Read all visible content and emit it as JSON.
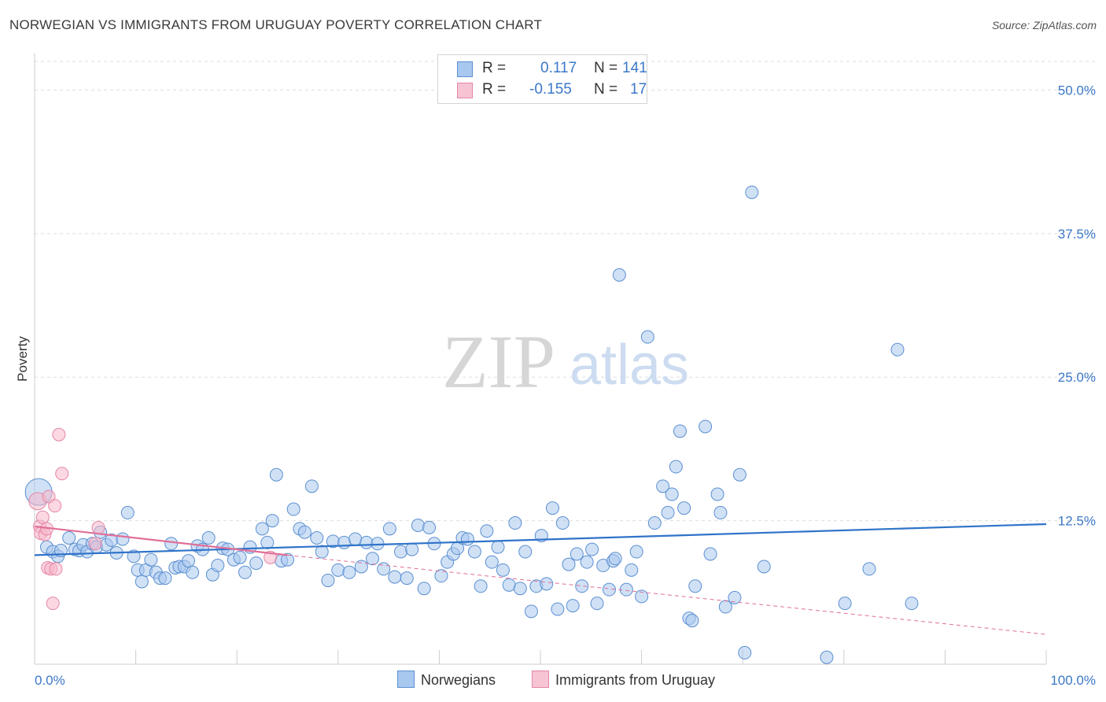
{
  "title": "NORWEGIAN VS IMMIGRANTS FROM URUGUAY POVERTY CORRELATION CHART",
  "source": "Source: ZipAtlas.com",
  "watermark": {
    "zip": "ZIP",
    "atlas": "atlas"
  },
  "legend": {
    "series1": {
      "r_label": "R =",
      "r_value": "0.117",
      "n_label": "N =",
      "n_value": "141"
    },
    "series2": {
      "r_label": "R =",
      "r_value": "-0.155",
      "n_label": "N =",
      "n_value": "17"
    }
  },
  "colors": {
    "blue_fill": "#a9c8ef",
    "blue_stroke": "#5b8fd0",
    "blue_line": "#2f73c9",
    "pink_fill": "#f7b8cb",
    "pink_stroke": "#e486a6",
    "pink_line": "#e06f98",
    "tick_label": "#3b78c8",
    "grid": "#dedede"
  },
  "chart_data": {
    "type": "scatter",
    "title": "NORWEGIAN VS IMMIGRANTS FROM URUGUAY POVERTY CORRELATION CHART",
    "xlabel": "",
    "ylabel": "Poverty",
    "xlim": [
      0,
      100
    ],
    "ylim": [
      0,
      52.5
    ],
    "x_tick_labels": [
      "0.0%",
      "100.0%"
    ],
    "y_ticks": [
      12.5,
      25.0,
      37.5,
      50.0
    ],
    "y_tick_labels": [
      "12.5%",
      "25.0%",
      "37.5%",
      "50.0%"
    ],
    "series": [
      {
        "name": "Norwegians",
        "R": 0.117,
        "N": 141,
        "trend": {
          "x": [
            0,
            100
          ],
          "y": [
            9.5,
            12.2
          ]
        },
        "points": [
          [
            0.4,
            15.0
          ],
          [
            1.2,
            10.2
          ],
          [
            1.8,
            9.8
          ],
          [
            2.3,
            9.4
          ],
          [
            2.6,
            9.9
          ],
          [
            3.4,
            11.0
          ],
          [
            4.0,
            10.0
          ],
          [
            4.4,
            9.9
          ],
          [
            4.8,
            10.4
          ],
          [
            5.2,
            9.8
          ],
          [
            5.7,
            10.5
          ],
          [
            6.1,
            10.2
          ],
          [
            6.5,
            11.5
          ],
          [
            7.1,
            10.4
          ],
          [
            7.6,
            10.8
          ],
          [
            8.1,
            9.7
          ],
          [
            8.7,
            10.9
          ],
          [
            9.2,
            13.2
          ],
          [
            9.8,
            9.4
          ],
          [
            10.2,
            8.2
          ],
          [
            10.6,
            7.2
          ],
          [
            11.0,
            8.2
          ],
          [
            11.5,
            9.1
          ],
          [
            12.0,
            8.0
          ],
          [
            12.4,
            7.5
          ],
          [
            12.9,
            7.5
          ],
          [
            13.5,
            10.5
          ],
          [
            13.9,
            8.4
          ],
          [
            14.3,
            8.5
          ],
          [
            14.8,
            8.5
          ],
          [
            15.2,
            9.0
          ],
          [
            15.6,
            8.0
          ],
          [
            16.1,
            10.3
          ],
          [
            16.6,
            10.0
          ],
          [
            17.2,
            11.0
          ],
          [
            17.6,
            7.8
          ],
          [
            18.1,
            8.6
          ],
          [
            18.6,
            10.1
          ],
          [
            19.1,
            10.0
          ],
          [
            19.7,
            9.1
          ],
          [
            20.3,
            9.3
          ],
          [
            20.8,
            8.0
          ],
          [
            21.3,
            10.2
          ],
          [
            21.9,
            8.8
          ],
          [
            22.5,
            11.8
          ],
          [
            23.0,
            10.6
          ],
          [
            23.5,
            12.5
          ],
          [
            23.9,
            16.5
          ],
          [
            24.4,
            9.0
          ],
          [
            25.0,
            9.1
          ],
          [
            25.6,
            13.5
          ],
          [
            26.2,
            11.8
          ],
          [
            26.7,
            11.5
          ],
          [
            27.4,
            15.5
          ],
          [
            27.9,
            11.0
          ],
          [
            28.4,
            9.8
          ],
          [
            29.0,
            7.3
          ],
          [
            29.5,
            10.7
          ],
          [
            30.0,
            8.2
          ],
          [
            30.6,
            10.6
          ],
          [
            31.1,
            8.0
          ],
          [
            31.7,
            10.9
          ],
          [
            32.3,
            8.5
          ],
          [
            32.8,
            10.6
          ],
          [
            33.4,
            9.2
          ],
          [
            33.9,
            10.5
          ],
          [
            34.5,
            8.3
          ],
          [
            35.1,
            11.8
          ],
          [
            35.6,
            7.6
          ],
          [
            36.2,
            9.8
          ],
          [
            36.8,
            7.5
          ],
          [
            37.3,
            10.0
          ],
          [
            37.9,
            12.1
          ],
          [
            38.5,
            6.6
          ],
          [
            39.0,
            11.9
          ],
          [
            39.5,
            10.5
          ],
          [
            40.2,
            7.7
          ],
          [
            40.8,
            8.9
          ],
          [
            41.4,
            9.6
          ],
          [
            41.8,
            10.1
          ],
          [
            42.3,
            11.0
          ],
          [
            42.8,
            10.9
          ],
          [
            43.5,
            9.8
          ],
          [
            44.1,
            6.8
          ],
          [
            44.7,
            11.6
          ],
          [
            45.2,
            8.9
          ],
          [
            45.8,
            10.2
          ],
          [
            46.3,
            8.2
          ],
          [
            46.9,
            6.9
          ],
          [
            47.5,
            12.3
          ],
          [
            48.0,
            6.6
          ],
          [
            48.5,
            9.8
          ],
          [
            49.1,
            4.6
          ],
          [
            49.6,
            6.8
          ],
          [
            50.1,
            11.2
          ],
          [
            50.6,
            7.0
          ],
          [
            51.2,
            13.6
          ],
          [
            51.7,
            4.8
          ],
          [
            52.2,
            12.3
          ],
          [
            52.8,
            8.7
          ],
          [
            53.2,
            5.1
          ],
          [
            53.6,
            9.6
          ],
          [
            54.1,
            6.8
          ],
          [
            54.6,
            8.9
          ],
          [
            55.1,
            10.0
          ],
          [
            55.6,
            5.3
          ],
          [
            56.2,
            8.6
          ],
          [
            56.8,
            6.5
          ],
          [
            57.2,
            9.0
          ],
          [
            57.8,
            33.9
          ],
          [
            58.5,
            6.5
          ],
          [
            59.0,
            8.2
          ],
          [
            59.5,
            9.8
          ],
          [
            60.0,
            5.9
          ],
          [
            60.6,
            28.5
          ],
          [
            61.3,
            12.3
          ],
          [
            62.1,
            15.5
          ],
          [
            62.6,
            13.2
          ],
          [
            63.0,
            14.8
          ],
          [
            63.4,
            17.2
          ],
          [
            63.8,
            20.3
          ],
          [
            64.2,
            13.6
          ],
          [
            64.7,
            4.0
          ],
          [
            65.0,
            3.8
          ],
          [
            65.3,
            6.8
          ],
          [
            66.3,
            20.7
          ],
          [
            66.8,
            9.6
          ],
          [
            67.5,
            14.8
          ],
          [
            67.8,
            13.2
          ],
          [
            68.3,
            5.0
          ],
          [
            69.2,
            5.8
          ],
          [
            69.7,
            16.5
          ],
          [
            70.2,
            1.0
          ],
          [
            72.1,
            8.5
          ],
          [
            78.3,
            0.6
          ],
          [
            80.1,
            5.3
          ],
          [
            82.5,
            8.3
          ],
          [
            85.3,
            27.4
          ],
          [
            86.7,
            5.3
          ],
          [
            70.9,
            41.1
          ],
          [
            57.4,
            9.2
          ]
        ]
      },
      {
        "name": "Immigrants from Uruguay",
        "R": -0.155,
        "N": 17,
        "trend": {
          "x": [
            0,
            25
          ],
          "y": [
            12.0,
            9.5
          ]
        },
        "trend_extended": {
          "x": [
            25,
            100
          ],
          "y": [
            9.5,
            2.6
          ]
        },
        "points": [
          [
            0.3,
            14.2
          ],
          [
            0.5,
            12.0
          ],
          [
            0.6,
            11.4
          ],
          [
            0.8,
            12.8
          ],
          [
            1.0,
            11.3
          ],
          [
            1.2,
            11.8
          ],
          [
            1.3,
            8.4
          ],
          [
            1.4,
            14.6
          ],
          [
            1.6,
            8.3
          ],
          [
            1.8,
            5.3
          ],
          [
            2.0,
            13.8
          ],
          [
            2.1,
            8.3
          ],
          [
            2.4,
            20.0
          ],
          [
            2.7,
            16.6
          ],
          [
            6.0,
            10.5
          ],
          [
            6.3,
            11.9
          ],
          [
            23.3,
            9.3
          ]
        ]
      }
    ],
    "legend": [
      "Norwegians",
      "Immigrants from Uruguay"
    ]
  }
}
